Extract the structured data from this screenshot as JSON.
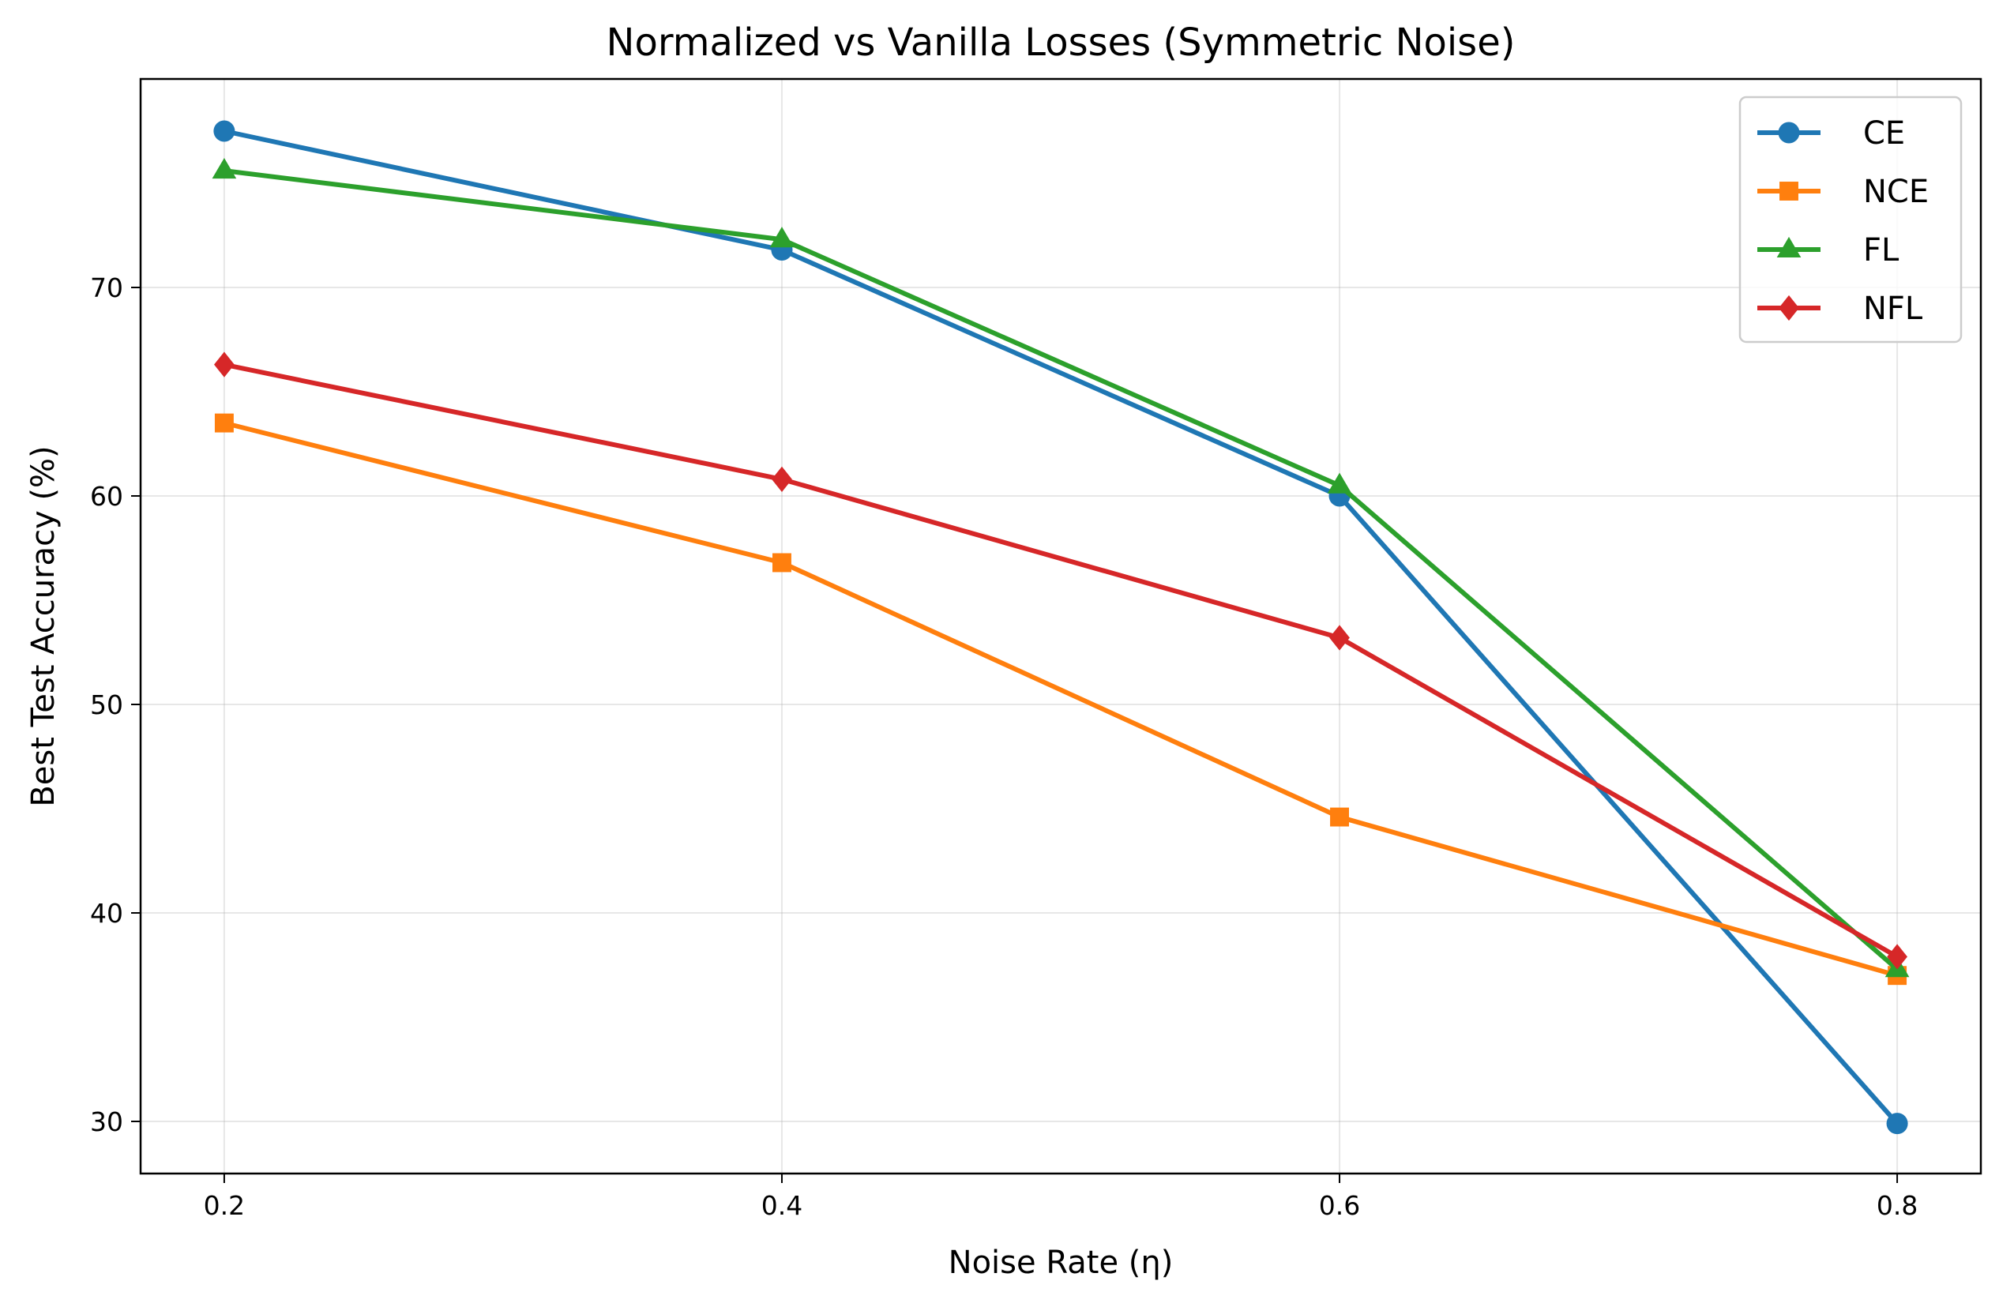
{
  "chart_data": {
    "type": "line",
    "title": "Normalized vs Vanilla Losses (Symmetric Noise)",
    "xlabel": "Noise Rate (η)",
    "ylabel": "Best Test Accuracy (%)",
    "x": [
      0.2,
      0.4,
      0.6,
      0.8
    ],
    "x_tick_labels": [
      "0.2",
      "0.4",
      "0.6",
      "0.8"
    ],
    "y_ticks": [
      30,
      40,
      50,
      60,
      70
    ],
    "y_tick_labels": [
      "30",
      "40",
      "50",
      "60",
      "70"
    ],
    "xlim": [
      0.17,
      0.83
    ],
    "ylim": [
      27.5,
      80
    ],
    "grid": true,
    "legend_position": "upper right",
    "series": [
      {
        "name": "CE",
        "values": [
          77.5,
          71.8,
          60.0,
          29.9
        ],
        "color": "#1f77b4",
        "marker": "circle"
      },
      {
        "name": "NCE",
        "values": [
          63.5,
          56.8,
          44.6,
          37.0
        ],
        "color": "#ff7f0e",
        "marker": "square"
      },
      {
        "name": "FL",
        "values": [
          75.6,
          72.3,
          60.5,
          37.3
        ],
        "color": "#2ca02c",
        "marker": "triangle"
      },
      {
        "name": "NFL",
        "values": [
          66.3,
          60.8,
          53.2,
          37.9
        ],
        "color": "#d62728",
        "marker": "diamond"
      }
    ]
  }
}
